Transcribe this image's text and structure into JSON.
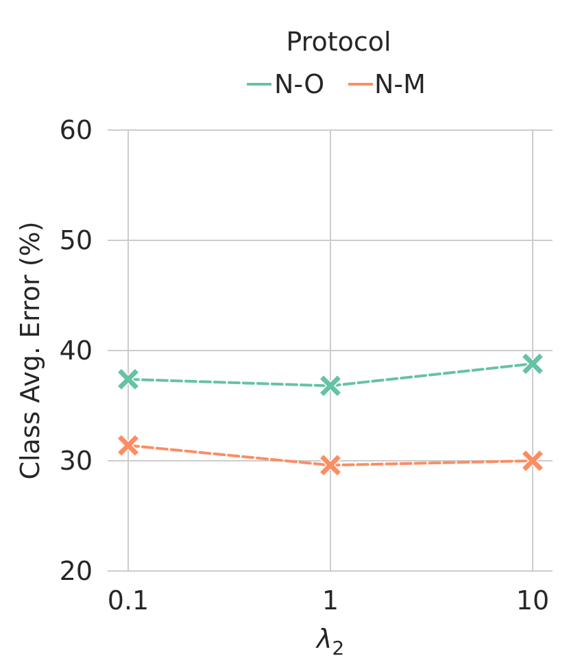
{
  "chart_data": {
    "type": "line",
    "x_scale": "log",
    "x": [
      0.1,
      1,
      10
    ],
    "x_tick_labels": [
      "0.1",
      "1",
      "10"
    ],
    "ylabel": "Class Avg. Error (%)",
    "xlabel_main": "λ",
    "xlabel_sub": "2",
    "ylim": [
      20,
      60
    ],
    "yticks": [
      20,
      30,
      40,
      50,
      60
    ],
    "grid": true,
    "legend": {
      "title": "Protocol",
      "position": "top-center"
    },
    "series": [
      {
        "name": "N-O",
        "values": [
          37.4,
          36.8,
          38.8
        ],
        "color": "#66c2a5",
        "marker": "X",
        "linestyle": "dashed"
      },
      {
        "name": "N-M",
        "values": [
          31.4,
          29.6,
          30.0
        ],
        "color": "#fc8d62",
        "marker": "X",
        "linestyle": "dashed"
      }
    ]
  }
}
